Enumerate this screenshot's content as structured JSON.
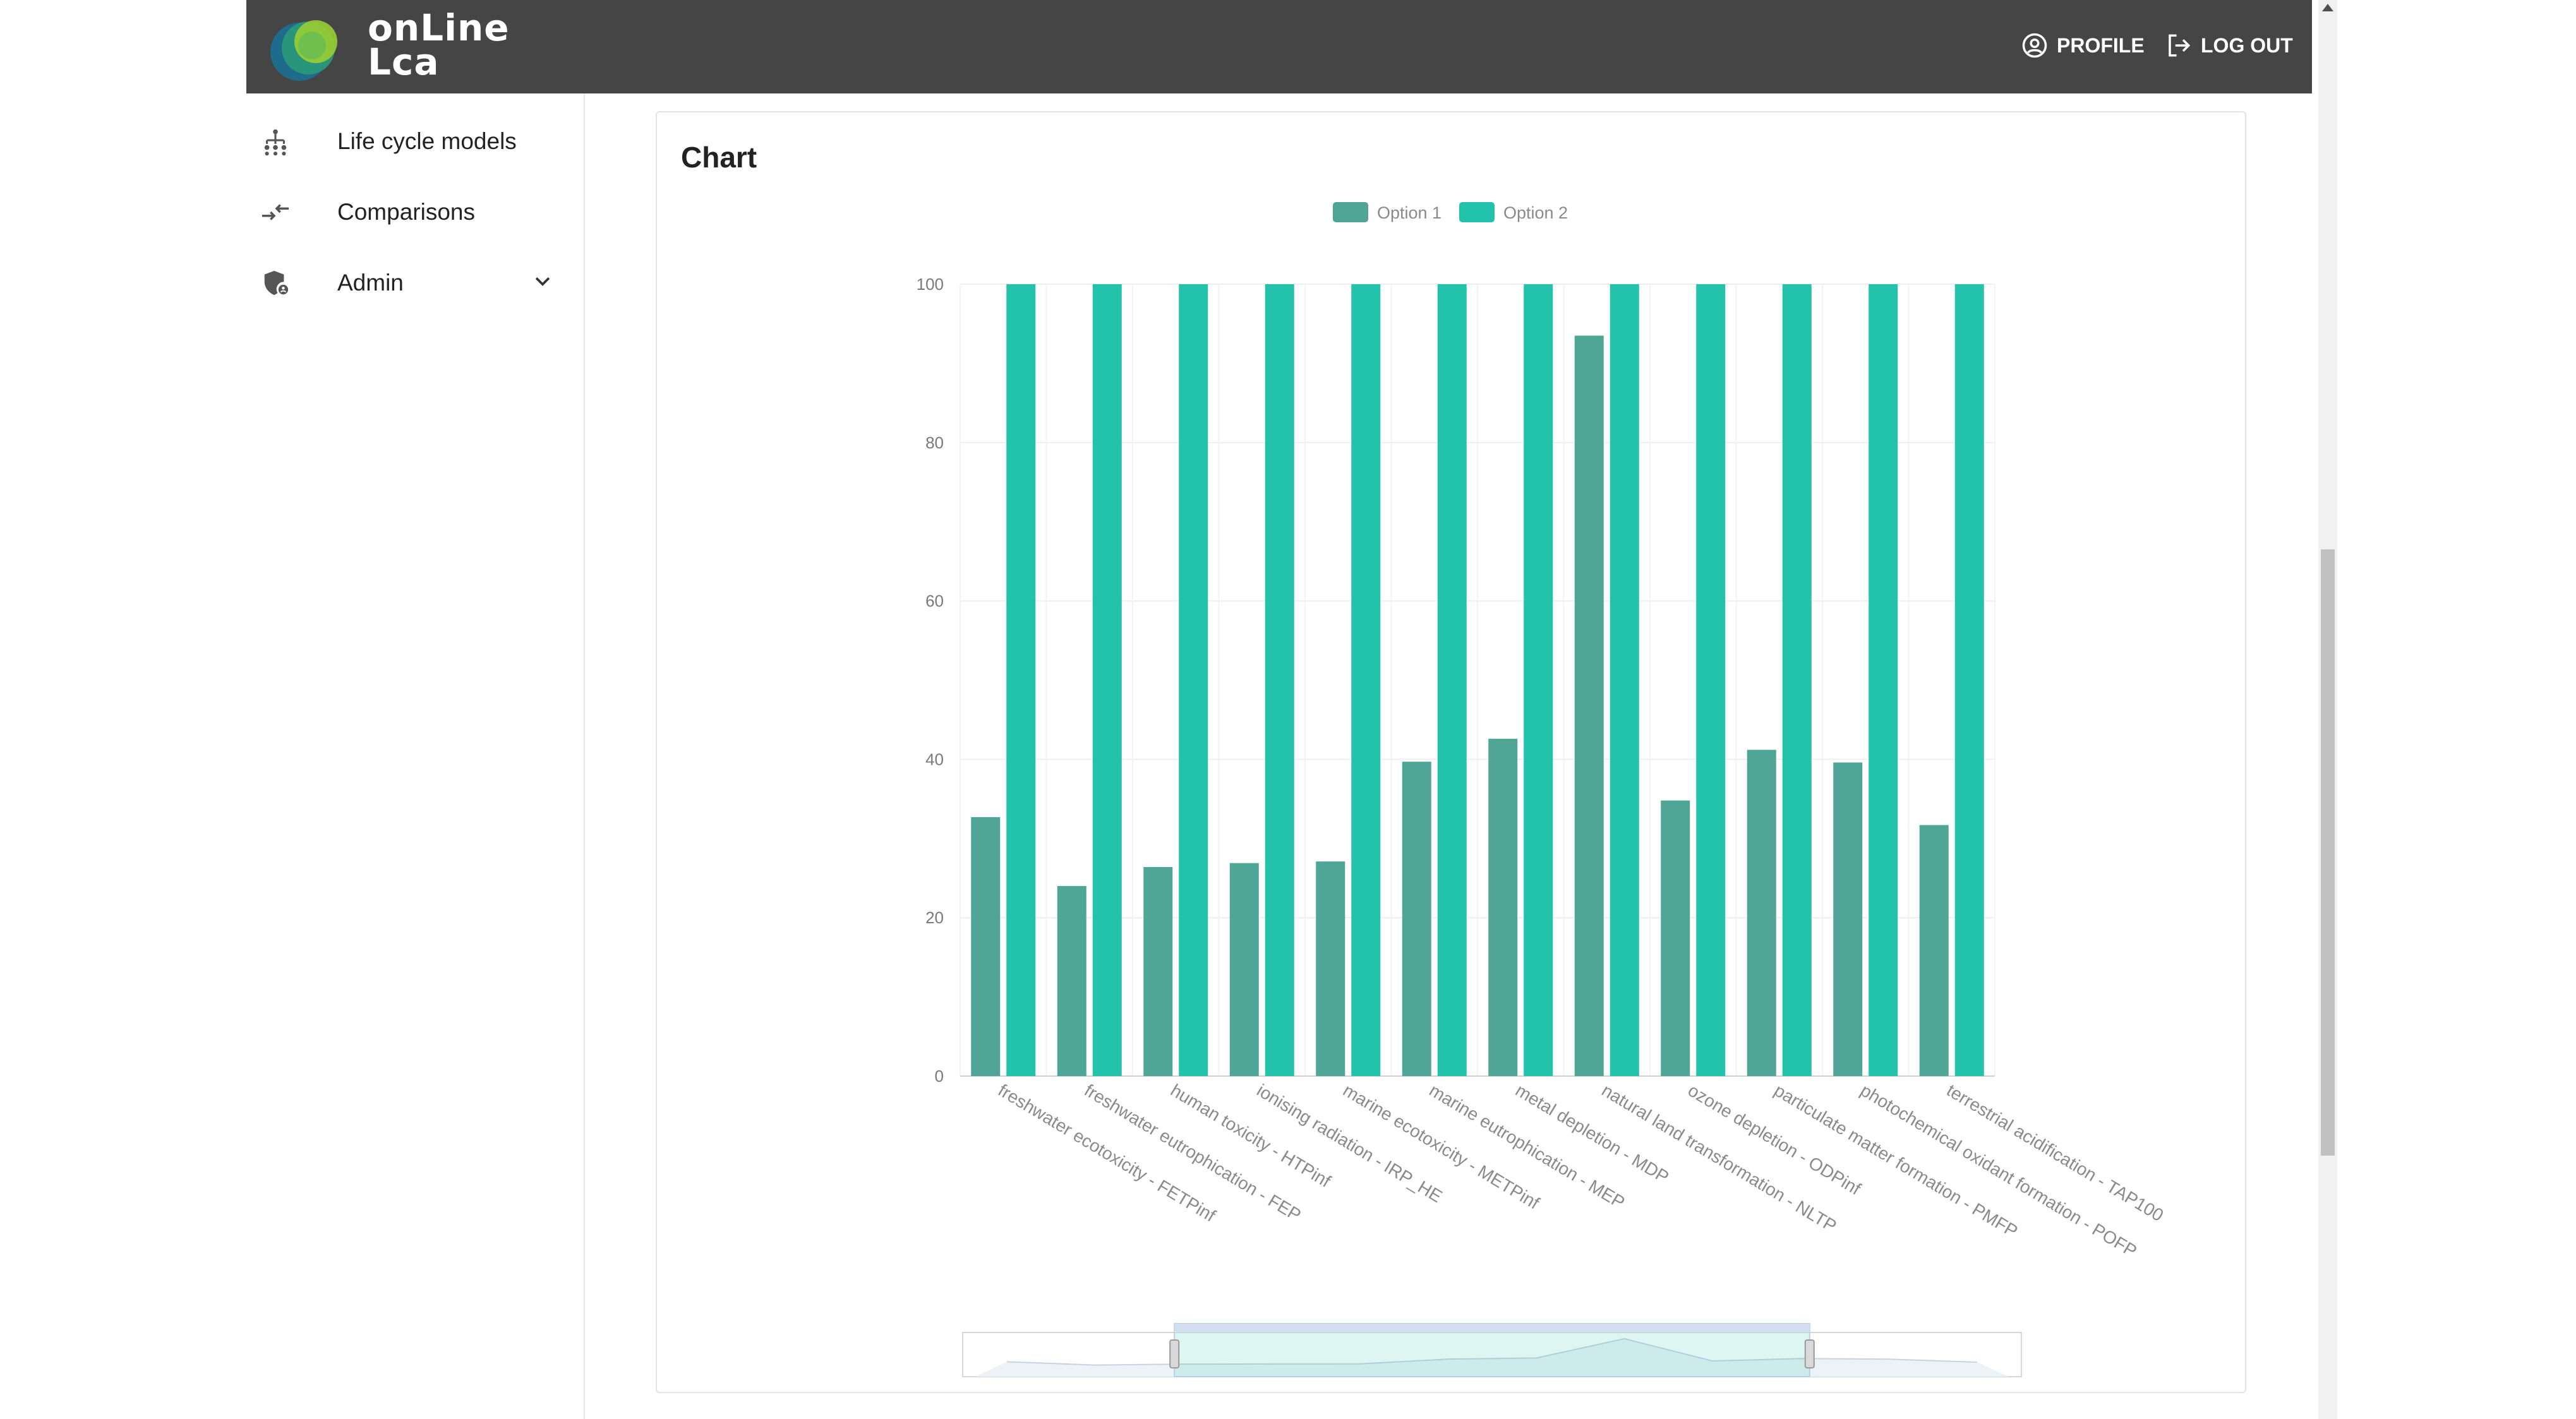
{
  "header": {
    "logo_line1": "onLine",
    "logo_line2": "Lca",
    "profile_label": "PROFILE",
    "logout_label": "LOG OUT",
    "profile_icon": "account-circle-icon",
    "logout_icon": "logout-icon"
  },
  "sidebar": {
    "items": [
      {
        "label": "Life cycle models",
        "icon": "hierarchy-icon"
      },
      {
        "label": "Comparisons",
        "icon": "compare-arrows-icon"
      },
      {
        "label": "Admin",
        "icon": "admin-shield-icon"
      }
    ]
  },
  "card": {
    "title": "Chart"
  },
  "colors": {
    "option1": "#4fa596",
    "option2": "#22c3aa",
    "topbar": "#454545"
  },
  "chart_data": {
    "type": "bar",
    "title": "",
    "xlabel": "",
    "ylabel": "",
    "ylim": [
      0,
      100
    ],
    "yticks": [
      0,
      20,
      40,
      60,
      80,
      100
    ],
    "legend_position": "top-center",
    "grid": true,
    "categories": [
      "freshwater ecotoxicity - FETPinf",
      "freshwater eutrophication - FEP",
      "human toxicity - HTPinf",
      "ionising radiation - IRP_HE",
      "marine ecotoxicity - METPinf",
      "marine eutrophication - MEP",
      "metal depletion - MDP",
      "natural land transformation - NLTP",
      "ozone depletion - ODPinf",
      "particulate matter formation - PMFP",
      "photochemical oxidant formation - POFP",
      "terrestrial acidification - TAP100"
    ],
    "series": [
      {
        "name": "Option 1",
        "values": [
          32.7,
          24,
          26.4,
          26.9,
          27.1,
          39.7,
          42.6,
          93.5,
          34.8,
          41.2,
          39.6,
          31.7
        ]
      },
      {
        "name": "Option 2",
        "values": [
          100,
          100,
          100,
          100,
          100,
          100,
          100,
          100,
          100,
          100,
          100,
          100
        ]
      }
    ],
    "data_zoom": {
      "start_percent": 20,
      "end_percent": 80
    }
  }
}
